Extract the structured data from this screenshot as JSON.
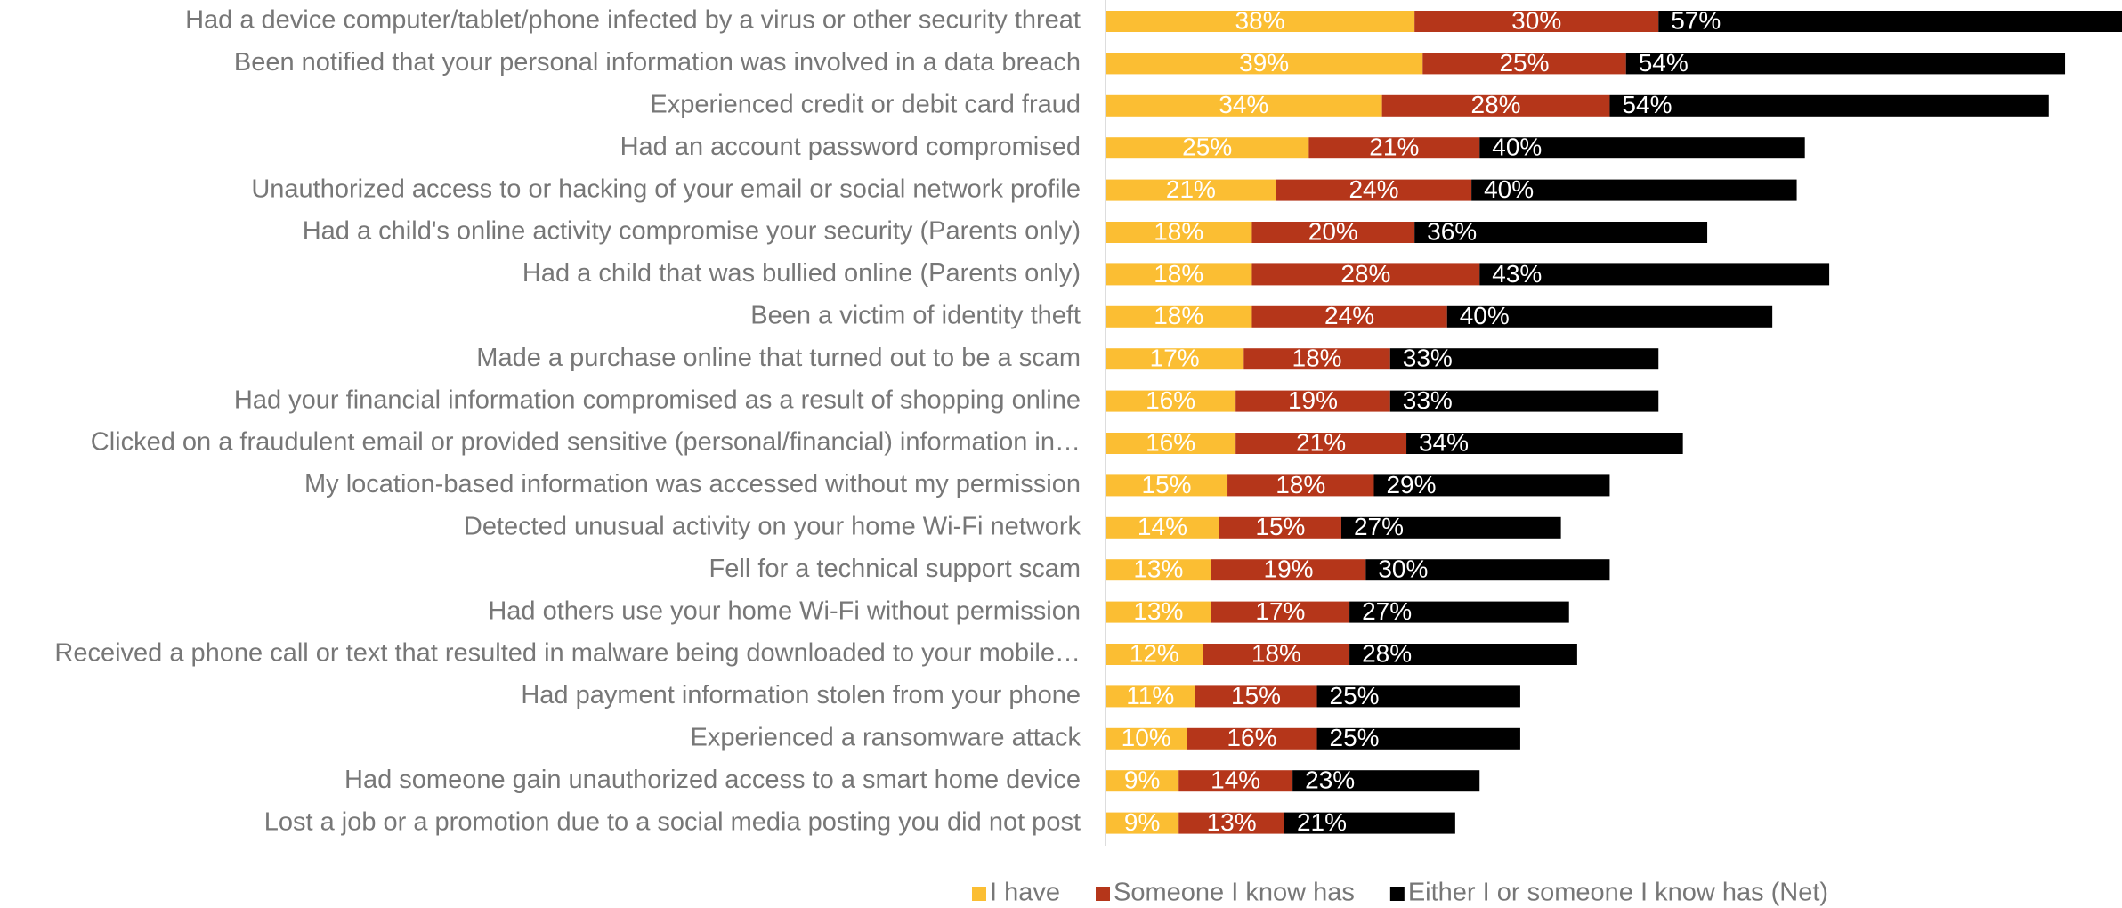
{
  "chart_data": {
    "type": "bar",
    "orientation": "horizontal",
    "stacked": true,
    "categories": [
      "Had a device computer/tablet/phone infected by a virus or other security threat",
      "Been notified that your personal information was involved in a data breach",
      "Experienced credit or debit card fraud",
      "Had an account password compromised",
      "Unauthorized access to or hacking of your email or social network profile",
      "Had a child's online activity compromise your security (Parents only)",
      "Had a child that was bullied online (Parents only)",
      "Been a victim of identity theft",
      "Made a purchase online that turned out to be a scam",
      "Had your financial information compromised as a result of shopping online",
      "Clicked on a fraudulent email or provided sensitive (personal/financial) information in…",
      "My location-based information was accessed without my permission",
      "Detected unusual activity on your home Wi-Fi network",
      "Fell for a technical support scam",
      "Had others use your home Wi-Fi without permission",
      "Received a phone call or text that resulted in malware being downloaded to your mobile…",
      "Had payment information stolen from your phone",
      "Experienced a ransomware attack",
      "Had someone gain unauthorized access to a smart home device",
      "Lost a job or a promotion due to a social media posting you did not post"
    ],
    "series": [
      {
        "name": "I have",
        "color": "#fbbe33",
        "values": [
          38,
          39,
          34,
          25,
          21,
          18,
          18,
          18,
          17,
          16,
          16,
          15,
          14,
          13,
          13,
          12,
          11,
          10,
          9,
          9
        ],
        "value_labels": [
          "38%",
          "39%",
          "34%",
          "25%",
          "21%",
          "18%",
          "18%",
          "18%",
          "17%",
          "16%",
          "16%",
          "15%",
          "14%",
          "13%",
          "13%",
          "12%",
          "11%",
          "10%",
          "9%",
          "9%"
        ]
      },
      {
        "name": "Someone I know has",
        "color": "#b5361a",
        "values": [
          30,
          25,
          28,
          21,
          24,
          20,
          28,
          24,
          18,
          19,
          21,
          18,
          15,
          19,
          17,
          18,
          15,
          16,
          14,
          13
        ],
        "value_labels": [
          "30%",
          "25%",
          "28%",
          "21%",
          "24%",
          "20%",
          "28%",
          "24%",
          "18%",
          "19%",
          "21%",
          "18%",
          "15%",
          "19%",
          "17%",
          "18%",
          "15%",
          "16%",
          "14%",
          "13%"
        ]
      },
      {
        "name": "Either I or someone I know has (Net)",
        "color": "#000000",
        "values": [
          57,
          54,
          54,
          40,
          40,
          36,
          43,
          40,
          33,
          33,
          34,
          29,
          27,
          30,
          27,
          28,
          25,
          25,
          23,
          21
        ],
        "value_labels": [
          "57%",
          "54%",
          "54%",
          "40%",
          "40%",
          "36%",
          "43%",
          "40%",
          "33%",
          "33%",
          "34%",
          "29%",
          "27%",
          "30%",
          "27%",
          "28%",
          "25%",
          "25%",
          "23%",
          "21%"
        ]
      }
    ],
    "xlim": [
      0,
      125
    ],
    "legend": "bottom"
  }
}
